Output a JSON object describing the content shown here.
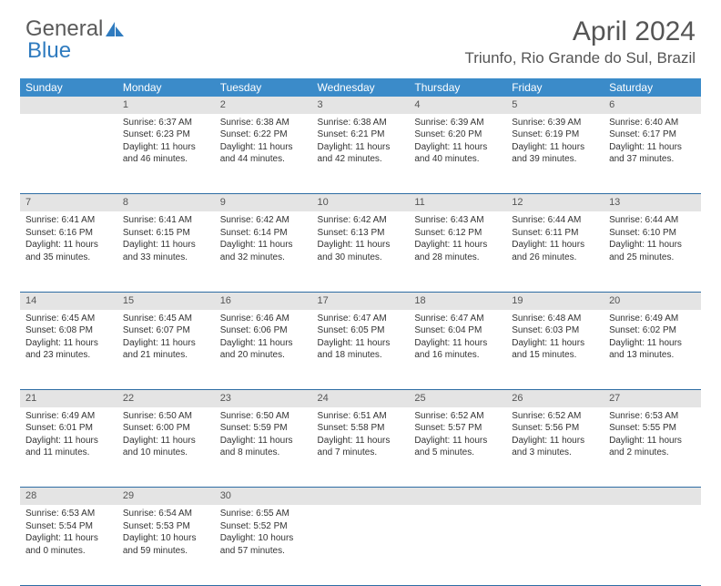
{
  "logo": {
    "text1": "General",
    "text2": "Blue"
  },
  "title": "April 2024",
  "location": "Triunfo, Rio Grande do Sul, Brazil",
  "colors": {
    "header_bg": "#3b8bc9",
    "daynum_bg": "#e4e4e4",
    "border": "#2e6da4",
    "text": "#333333",
    "muted": "#555555"
  },
  "day_names": [
    "Sunday",
    "Monday",
    "Tuesday",
    "Wednesday",
    "Thursday",
    "Friday",
    "Saturday"
  ],
  "weeks": [
    {
      "nums": [
        "",
        "1",
        "2",
        "3",
        "4",
        "5",
        "6"
      ],
      "cells": [
        [],
        [
          "Sunrise: 6:37 AM",
          "Sunset: 6:23 PM",
          "Daylight: 11 hours",
          "and 46 minutes."
        ],
        [
          "Sunrise: 6:38 AM",
          "Sunset: 6:22 PM",
          "Daylight: 11 hours",
          "and 44 minutes."
        ],
        [
          "Sunrise: 6:38 AM",
          "Sunset: 6:21 PM",
          "Daylight: 11 hours",
          "and 42 minutes."
        ],
        [
          "Sunrise: 6:39 AM",
          "Sunset: 6:20 PM",
          "Daylight: 11 hours",
          "and 40 minutes."
        ],
        [
          "Sunrise: 6:39 AM",
          "Sunset: 6:19 PM",
          "Daylight: 11 hours",
          "and 39 minutes."
        ],
        [
          "Sunrise: 6:40 AM",
          "Sunset: 6:17 PM",
          "Daylight: 11 hours",
          "and 37 minutes."
        ]
      ]
    },
    {
      "nums": [
        "7",
        "8",
        "9",
        "10",
        "11",
        "12",
        "13"
      ],
      "cells": [
        [
          "Sunrise: 6:41 AM",
          "Sunset: 6:16 PM",
          "Daylight: 11 hours",
          "and 35 minutes."
        ],
        [
          "Sunrise: 6:41 AM",
          "Sunset: 6:15 PM",
          "Daylight: 11 hours",
          "and 33 minutes."
        ],
        [
          "Sunrise: 6:42 AM",
          "Sunset: 6:14 PM",
          "Daylight: 11 hours",
          "and 32 minutes."
        ],
        [
          "Sunrise: 6:42 AM",
          "Sunset: 6:13 PM",
          "Daylight: 11 hours",
          "and 30 minutes."
        ],
        [
          "Sunrise: 6:43 AM",
          "Sunset: 6:12 PM",
          "Daylight: 11 hours",
          "and 28 minutes."
        ],
        [
          "Sunrise: 6:44 AM",
          "Sunset: 6:11 PM",
          "Daylight: 11 hours",
          "and 26 minutes."
        ],
        [
          "Sunrise: 6:44 AM",
          "Sunset: 6:10 PM",
          "Daylight: 11 hours",
          "and 25 minutes."
        ]
      ]
    },
    {
      "nums": [
        "14",
        "15",
        "16",
        "17",
        "18",
        "19",
        "20"
      ],
      "cells": [
        [
          "Sunrise: 6:45 AM",
          "Sunset: 6:08 PM",
          "Daylight: 11 hours",
          "and 23 minutes."
        ],
        [
          "Sunrise: 6:45 AM",
          "Sunset: 6:07 PM",
          "Daylight: 11 hours",
          "and 21 minutes."
        ],
        [
          "Sunrise: 6:46 AM",
          "Sunset: 6:06 PM",
          "Daylight: 11 hours",
          "and 20 minutes."
        ],
        [
          "Sunrise: 6:47 AM",
          "Sunset: 6:05 PM",
          "Daylight: 11 hours",
          "and 18 minutes."
        ],
        [
          "Sunrise: 6:47 AM",
          "Sunset: 6:04 PM",
          "Daylight: 11 hours",
          "and 16 minutes."
        ],
        [
          "Sunrise: 6:48 AM",
          "Sunset: 6:03 PM",
          "Daylight: 11 hours",
          "and 15 minutes."
        ],
        [
          "Sunrise: 6:49 AM",
          "Sunset: 6:02 PM",
          "Daylight: 11 hours",
          "and 13 minutes."
        ]
      ]
    },
    {
      "nums": [
        "21",
        "22",
        "23",
        "24",
        "25",
        "26",
        "27"
      ],
      "cells": [
        [
          "Sunrise: 6:49 AM",
          "Sunset: 6:01 PM",
          "Daylight: 11 hours",
          "and 11 minutes."
        ],
        [
          "Sunrise: 6:50 AM",
          "Sunset: 6:00 PM",
          "Daylight: 11 hours",
          "and 10 minutes."
        ],
        [
          "Sunrise: 6:50 AM",
          "Sunset: 5:59 PM",
          "Daylight: 11 hours",
          "and 8 minutes."
        ],
        [
          "Sunrise: 6:51 AM",
          "Sunset: 5:58 PM",
          "Daylight: 11 hours",
          "and 7 minutes."
        ],
        [
          "Sunrise: 6:52 AM",
          "Sunset: 5:57 PM",
          "Daylight: 11 hours",
          "and 5 minutes."
        ],
        [
          "Sunrise: 6:52 AM",
          "Sunset: 5:56 PM",
          "Daylight: 11 hours",
          "and 3 minutes."
        ],
        [
          "Sunrise: 6:53 AM",
          "Sunset: 5:55 PM",
          "Daylight: 11 hours",
          "and 2 minutes."
        ]
      ]
    },
    {
      "nums": [
        "28",
        "29",
        "30",
        "",
        "",
        "",
        ""
      ],
      "cells": [
        [
          "Sunrise: 6:53 AM",
          "Sunset: 5:54 PM",
          "Daylight: 11 hours",
          "and 0 minutes."
        ],
        [
          "Sunrise: 6:54 AM",
          "Sunset: 5:53 PM",
          "Daylight: 10 hours",
          "and 59 minutes."
        ],
        [
          "Sunrise: 6:55 AM",
          "Sunset: 5:52 PM",
          "Daylight: 10 hours",
          "and 57 minutes."
        ],
        [],
        [],
        [],
        []
      ]
    }
  ]
}
